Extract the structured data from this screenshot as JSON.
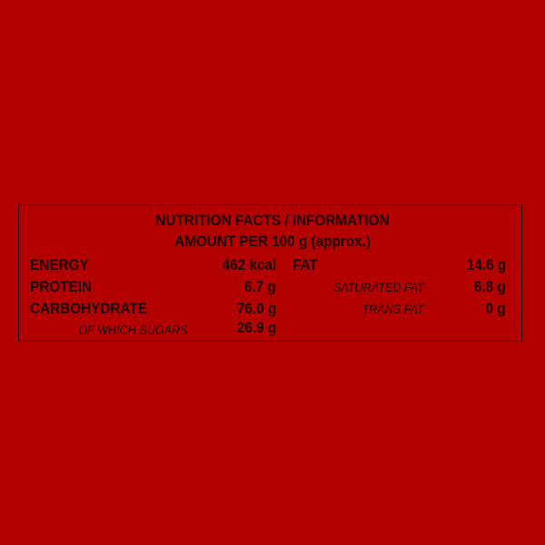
{
  "colors": {
    "background": "#b30000",
    "text": "#1c0202"
  },
  "title": "NUTRITION FACTS / INFORMATION",
  "subtitle": "AMOUNT PER 100 g (approx.)",
  "left": [
    {
      "label": "ENERGY",
      "value": "462 kcal"
    },
    {
      "label": "PROTEIN",
      "value": "6.7 g"
    },
    {
      "label": "CARBOHYDRATE",
      "value": "76.0 g"
    },
    {
      "label": "OF WHICH SUGARS",
      "value": "26.9 g"
    }
  ],
  "right": [
    {
      "label": "FAT",
      "value": "14.6 g"
    },
    {
      "label": "SATURATED FAT",
      "value": "6.8 g"
    },
    {
      "label": "TRANS FAT",
      "value": "0 g"
    }
  ]
}
